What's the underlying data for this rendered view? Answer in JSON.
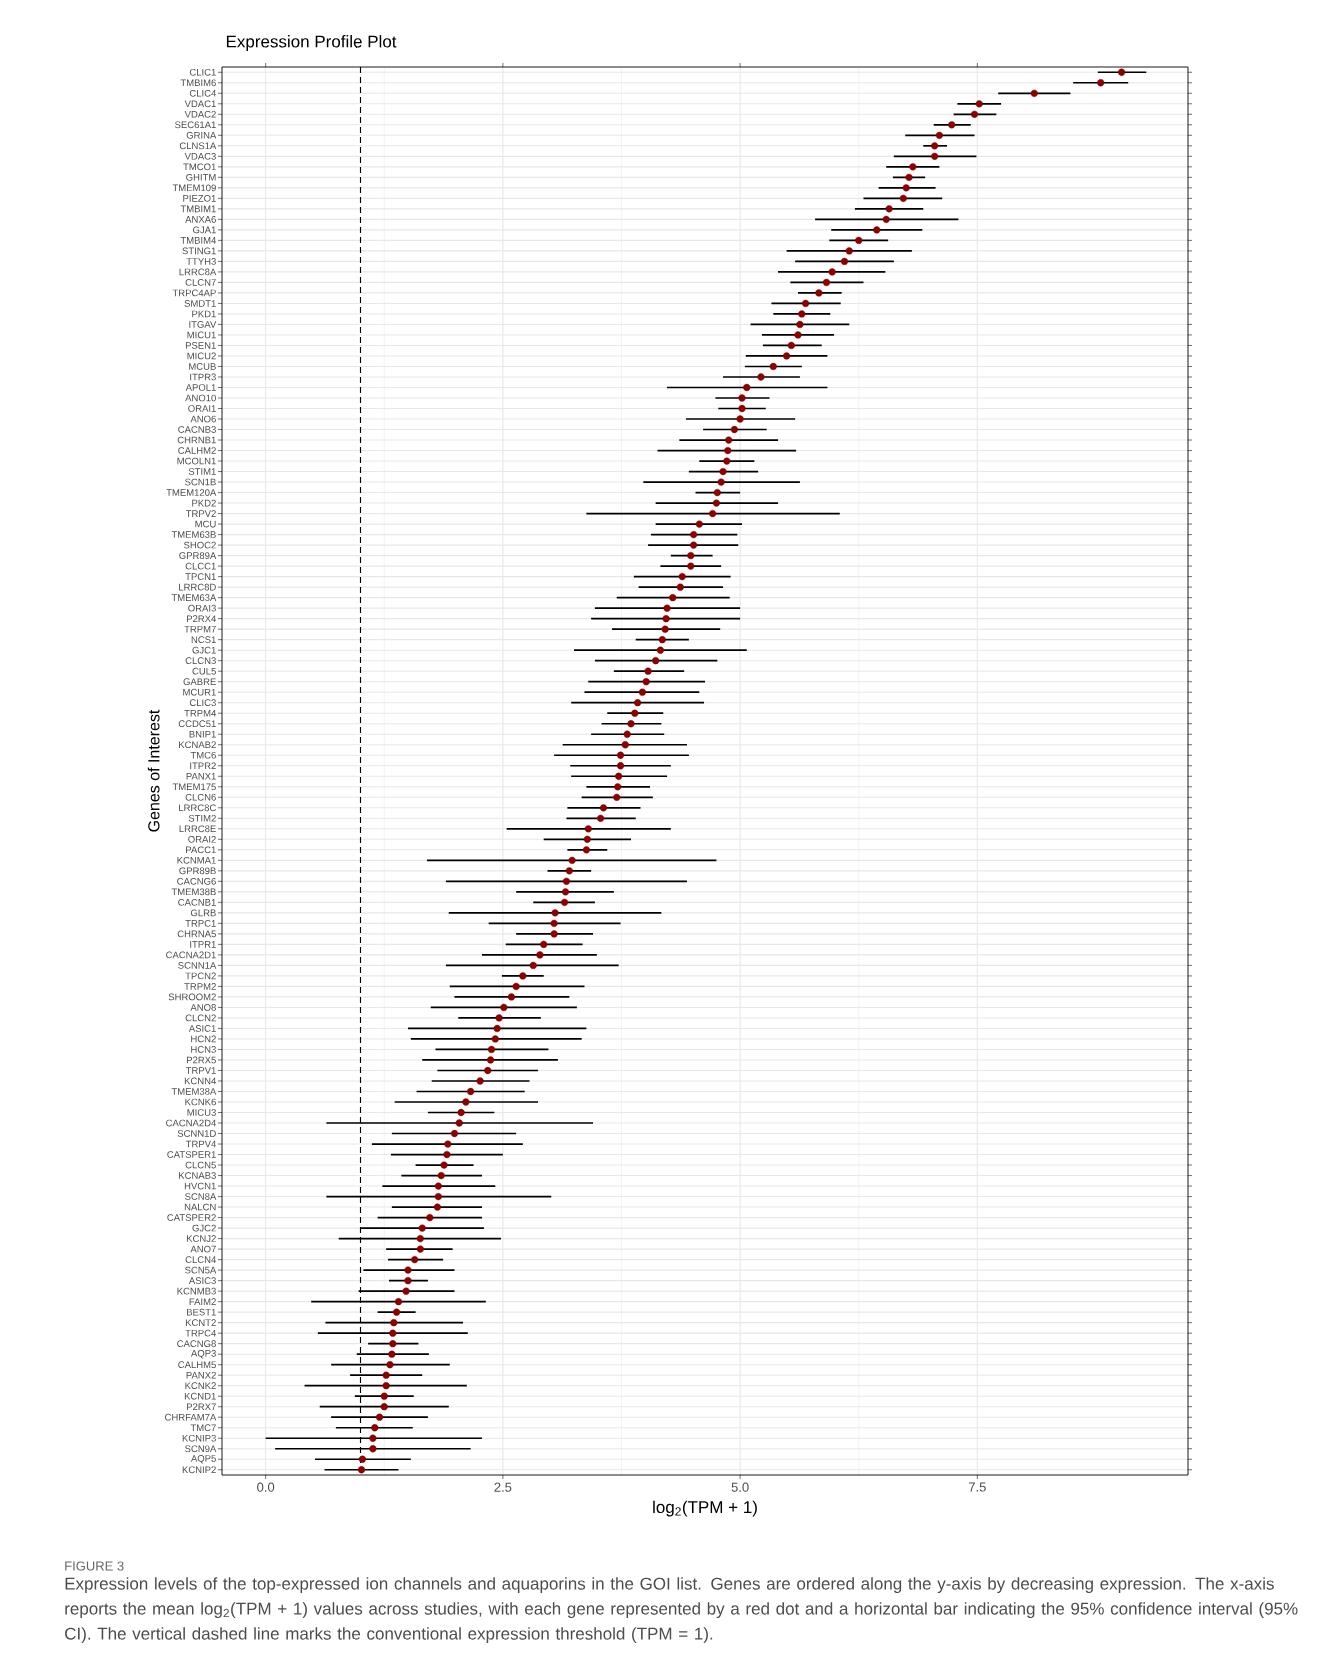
{
  "chart_data": {
    "type": "scatter",
    "orientation": "horizontal",
    "title": "Expression Profile Plot",
    "xlabel": "log$_{2}$(TPM + 1)",
    "ylabel": "Genes of Interest",
    "categories": [
      "CLIC1",
      "TMBIM6",
      "CLIC4",
      "VDAC1",
      "VDAC2",
      "SEC61A1",
      "GRINA",
      "CLNS1A",
      "VDAC3",
      "TMCO1",
      "GHITM",
      "TMEM109",
      "PIEZO1",
      "TMBIM1",
      "ANXA6",
      "GJA1",
      "TMBIM4",
      "STING1",
      "TTYH3",
      "LRRC8A",
      "CLCN7",
      "TRPC4AP",
      "SMDT1",
      "PKD1",
      "ITGAV",
      "MICU1",
      "PSEN1",
      "MICU2",
      "MCUB",
      "ITPR3",
      "APOL1",
      "ANO10",
      "ORAI1",
      "ANO6",
      "CACNB3",
      "CHRNB1",
      "CALHM2",
      "MCOLN1",
      "STIM1",
      "SCN1B",
      "TMEM120A",
      "PKD2",
      "TRPV2",
      "MCU",
      "TMEM63B",
      "SHOC2",
      "GPR89A",
      "CLCC1",
      "TPCN1",
      "LRRC8D",
      "TMEM63A",
      "ORAI3",
      "P2RX4",
      "TRPM7",
      "NCS1",
      "GJC1",
      "CLCN3",
      "CUL5",
      "GABRE",
      "MCUR1",
      "CLIC3",
      "TRPM4",
      "CCDC51",
      "BNIP1",
      "KCNAB2",
      "TMC6",
      "ITPR2",
      "PANX1",
      "TMEM175",
      "CLCN6",
      "LRRC8C",
      "STIM2",
      "LRRC8E",
      "ORAI2",
      "PACC1",
      "KCNMA1",
      "GPR89B",
      "CACNG6",
      "TMEM38B",
      "CACNB1",
      "GLRB",
      "TRPC1",
      "CHRNA5",
      "ITPR1",
      "CACNA2D1",
      "SCNN1A",
      "TPCN2",
      "TRPM2",
      "SHROOM2",
      "ANO8",
      "CLCN2",
      "ASIC1",
      "HCN2",
      "HCN3",
      "P2RX5",
      "TRPV1",
      "KCNN4",
      "TMEM38A",
      "KCNK6",
      "MICU3",
      "CACNA2D4",
      "SCNN1D",
      "TRPV4",
      "CATSPER1",
      "CLCN5",
      "KCNAB3",
      "HVCN1",
      "SCN8A",
      "NALCN",
      "CATSPER2",
      "GJC2",
      "KCNJ2",
      "ANO7",
      "CLCN4",
      "SCN5A",
      "ASIC3",
      "KCNMB3",
      "FAIM2",
      "BEST1",
      "KCNT2",
      "TRPC4",
      "CACNG8",
      "AQP3",
      "CALHM5",
      "PANX2",
      "KCNK2",
      "KCND1",
      "P2RX7",
      "CHRFAM7A",
      "TMC7",
      "KCNIP3",
      "SCN9A",
      "AQP5",
      "KCNIP2"
    ],
    "values": [
      9.02,
      8.8,
      8.1,
      7.52,
      7.47,
      7.23,
      7.1,
      7.05,
      7.05,
      6.82,
      6.78,
      6.75,
      6.72,
      6.57,
      6.54,
      6.44,
      6.25,
      6.15,
      6.1,
      5.97,
      5.91,
      5.83,
      5.69,
      5.65,
      5.63,
      5.61,
      5.54,
      5.49,
      5.35,
      5.22,
      5.07,
      5.02,
      5.02,
      5.0,
      4.94,
      4.88,
      4.87,
      4.86,
      4.82,
      4.8,
      4.76,
      4.75,
      4.71,
      4.57,
      4.51,
      4.51,
      4.48,
      4.48,
      4.39,
      4.37,
      4.29,
      4.23,
      4.22,
      4.21,
      4.18,
      4.16,
      4.11,
      4.03,
      4.01,
      3.97,
      3.92,
      3.89,
      3.85,
      3.81,
      3.79,
      3.74,
      3.74,
      3.72,
      3.71,
      3.7,
      3.56,
      3.53,
      3.4,
      3.39,
      3.38,
      3.23,
      3.2,
      3.17,
      3.16,
      3.15,
      3.05,
      3.04,
      3.04,
      2.93,
      2.89,
      2.82,
      2.71,
      2.64,
      2.59,
      2.51,
      2.46,
      2.44,
      2.42,
      2.38,
      2.37,
      2.34,
      2.26,
      2.16,
      2.11,
      2.06,
      2.04,
      1.99,
      1.92,
      1.91,
      1.88,
      1.85,
      1.82,
      1.82,
      1.81,
      1.73,
      1.65,
      1.63,
      1.63,
      1.57,
      1.5,
      1.5,
      1.48,
      1.4,
      1.38,
      1.35,
      1.34,
      1.34,
      1.33,
      1.31,
      1.27,
      1.27,
      1.25,
      1.25,
      1.2,
      1.15,
      1.13,
      1.13,
      1.02,
      1.01
    ],
    "errors": [
      [
        8.77,
        9.28
      ],
      [
        8.51,
        9.09
      ],
      [
        7.72,
        8.48
      ],
      [
        7.29,
        7.75
      ],
      [
        7.25,
        7.7
      ],
      [
        7.04,
        7.43
      ],
      [
        6.74,
        7.47
      ],
      [
        6.93,
        7.18
      ],
      [
        6.62,
        7.49
      ],
      [
        6.54,
        7.1
      ],
      [
        6.61,
        6.95
      ],
      [
        6.46,
        7.06
      ],
      [
        6.3,
        7.13
      ],
      [
        6.21,
        6.93
      ],
      [
        5.79,
        7.3
      ],
      [
        5.96,
        6.92
      ],
      [
        5.94,
        6.56
      ],
      [
        5.49,
        6.81
      ],
      [
        5.58,
        6.62
      ],
      [
        5.4,
        6.53
      ],
      [
        5.53,
        6.3
      ],
      [
        5.61,
        6.07
      ],
      [
        5.33,
        6.06
      ],
      [
        5.35,
        5.95
      ],
      [
        5.11,
        6.15
      ],
      [
        5.23,
        5.99
      ],
      [
        5.24,
        5.86
      ],
      [
        5.06,
        5.92
      ],
      [
        5.05,
        5.65
      ],
      [
        4.82,
        5.63
      ],
      [
        4.23,
        5.92
      ],
      [
        4.74,
        5.31
      ],
      [
        4.77,
        5.27
      ],
      [
        4.43,
        5.58
      ],
      [
        4.61,
        5.28
      ],
      [
        4.36,
        5.4
      ],
      [
        4.13,
        5.59
      ],
      [
        4.57,
        5.15
      ],
      [
        4.46,
        5.19
      ],
      [
        3.98,
        5.63
      ],
      [
        4.53,
        5.0
      ],
      [
        4.11,
        5.4
      ],
      [
        3.38,
        6.05
      ],
      [
        4.11,
        5.02
      ],
      [
        4.06,
        4.97
      ],
      [
        4.03,
        4.98
      ],
      [
        4.27,
        4.71
      ],
      [
        4.16,
        4.8
      ],
      [
        3.88,
        4.9
      ],
      [
        3.93,
        4.82
      ],
      [
        3.7,
        4.89
      ],
      [
        3.47,
        5.0
      ],
      [
        3.43,
        5.0
      ],
      [
        3.65,
        4.79
      ],
      [
        3.9,
        4.46
      ],
      [
        3.25,
        5.07
      ],
      [
        3.47,
        4.76
      ],
      [
        3.67,
        4.41
      ],
      [
        3.4,
        4.63
      ],
      [
        3.36,
        4.57
      ],
      [
        3.22,
        4.62
      ],
      [
        3.6,
        4.19
      ],
      [
        3.54,
        4.17
      ],
      [
        3.43,
        4.2
      ],
      [
        3.13,
        4.44
      ],
      [
        3.04,
        4.46
      ],
      [
        3.21,
        4.27
      ],
      [
        3.22,
        4.23
      ],
      [
        3.38,
        4.05
      ],
      [
        3.33,
        4.08
      ],
      [
        3.18,
        3.95
      ],
      [
        3.17,
        3.9
      ],
      [
        2.54,
        4.27
      ],
      [
        2.93,
        3.85
      ],
      [
        3.18,
        3.6
      ],
      [
        1.7,
        4.75
      ],
      [
        2.97,
        3.43
      ],
      [
        1.9,
        4.44
      ],
      [
        2.64,
        3.67
      ],
      [
        2.82,
        3.47
      ],
      [
        1.93,
        4.17
      ],
      [
        2.35,
        3.74
      ],
      [
        2.64,
        3.45
      ],
      [
        2.53,
        3.34
      ],
      [
        2.28,
        3.49
      ],
      [
        1.9,
        3.72
      ],
      [
        2.49,
        2.93
      ],
      [
        1.94,
        3.36
      ],
      [
        1.99,
        3.2
      ],
      [
        1.74,
        3.28
      ],
      [
        2.03,
        2.9
      ],
      [
        1.5,
        3.38
      ],
      [
        1.53,
        3.33
      ],
      [
        1.79,
        2.98
      ],
      [
        1.65,
        3.08
      ],
      [
        1.81,
        2.87
      ],
      [
        1.75,
        2.78
      ],
      [
        1.59,
        2.73
      ],
      [
        1.36,
        2.87
      ],
      [
        1.71,
        2.41
      ],
      [
        0.64,
        3.45
      ],
      [
        1.33,
        2.64
      ],
      [
        1.12,
        2.71
      ],
      [
        1.32,
        2.5
      ],
      [
        1.58,
        2.19
      ],
      [
        1.43,
        2.28
      ],
      [
        1.23,
        2.42
      ],
      [
        0.64,
        3.01
      ],
      [
        1.33,
        2.28
      ],
      [
        1.18,
        2.28
      ],
      [
        1.0,
        2.3
      ],
      [
        0.77,
        2.48
      ],
      [
        1.27,
        1.97
      ],
      [
        1.29,
        1.87
      ],
      [
        1.03,
        1.99
      ],
      [
        1.3,
        1.71
      ],
      [
        0.98,
        1.99
      ],
      [
        0.48,
        2.32
      ],
      [
        1.18,
        1.58
      ],
      [
        0.63,
        2.08
      ],
      [
        0.55,
        2.13
      ],
      [
        1.08,
        1.61
      ],
      [
        0.96,
        1.72
      ],
      [
        0.69,
        1.94
      ],
      [
        0.89,
        1.65
      ],
      [
        0.41,
        2.12
      ],
      [
        0.94,
        1.56
      ],
      [
        0.57,
        1.93
      ],
      [
        0.69,
        1.71
      ],
      [
        0.74,
        1.55
      ],
      [
        0.0,
        2.28
      ],
      [
        0.1,
        2.16
      ],
      [
        0.52,
        1.53
      ],
      [
        0.62,
        1.4
      ]
    ],
    "color": "#8b0000",
    "marker": "circle",
    "xlim": [
      -0.46,
      9.72
    ],
    "xticks": [
      {
        "value": 0,
        "label": "0.0"
      },
      2.5,
      {
        "value": 5,
        "label": "5.0"
      },
      7.5
    ],
    "grid": true,
    "ref_lines": [
      {
        "axis": "x",
        "value": 1,
        "color": "#000000",
        "line_style": "dashed"
      }
    ],
    "annotations": [
      "FIGURE 3",
      "Expression levels of the top-expressed ion channels and aquaporins in the GOI list. Genes are ordered along the y-axis by decreasing expression. The x-axis reports the mean log$_{2}$(TPM + 1) values across studies, with each gene represented by a red dot and a horizontal bar indicating the 95% confidence interval (95% CI). The vertical dashed line marks the conventional expression threshold (TPM = 1)."
    ]
  }
}
